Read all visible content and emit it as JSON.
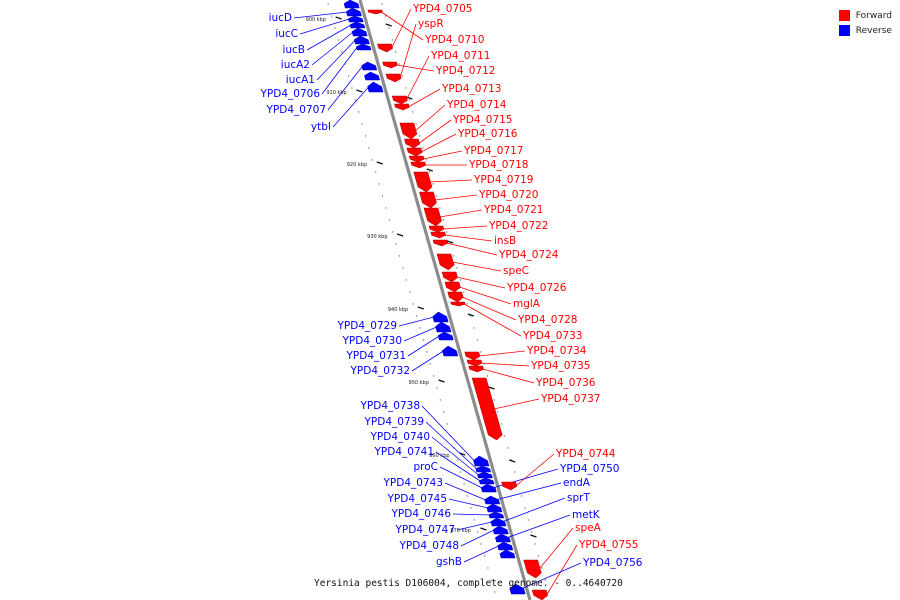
{
  "legend": {
    "forward_label": "Forward",
    "reverse_label": "Reverse",
    "forward_color": "#ff0000",
    "reverse_color": "#0000ff"
  },
  "caption": "Yersinia pestis D106004, complete genome. - 0..4640720",
  "ticks": [
    "900 kbp",
    "910 kbp",
    "920 kbp",
    "930 kbp",
    "940 kbp",
    "950 kbp",
    "960 kbp",
    "970 kbp"
  ],
  "forward_genes": [
    "YPD4_0705",
    "yspR",
    "YPD4_0710",
    "YPD4_0711",
    "YPD4_0712",
    "YPD4_0713",
    "YPD4_0714",
    "YPD4_0715",
    "YPD4_0716",
    "YPD4_0717",
    "YPD4_0718",
    "YPD4_0719",
    "YPD4_0720",
    "YPD4_0721",
    "YPD4_0722",
    "insB",
    "YPD4_0724",
    "speC",
    "YPD4_0726",
    "mglA",
    "YPD4_0728",
    "YPD4_0733",
    "YPD4_0734",
    "YPD4_0735",
    "YPD4_0736",
    "YPD4_0737",
    "YPD4_0744",
    "speA",
    "YPD4_0755"
  ],
  "reverse_genes_left": [
    "iucD",
    "iucC",
    "iucB",
    "iucA2",
    "iucA1",
    "YPD4_0706",
    "YPD4_0707",
    "ytbI",
    "YPD4_0729",
    "YPD4_0730",
    "YPD4_0731",
    "YPD4_0732",
    "YPD4_0738",
    "YPD4_0739",
    "YPD4_0740",
    "YPD4_0741",
    "proC",
    "YPD4_0743",
    "YPD4_0745",
    "YPD4_0746",
    "YPD4_0747",
    "YPD4_0748",
    "gshB"
  ],
  "reverse_genes_right": [
    "YPD4_0750",
    "endA",
    "sprT",
    "metK",
    "YPD4_0756"
  ]
}
